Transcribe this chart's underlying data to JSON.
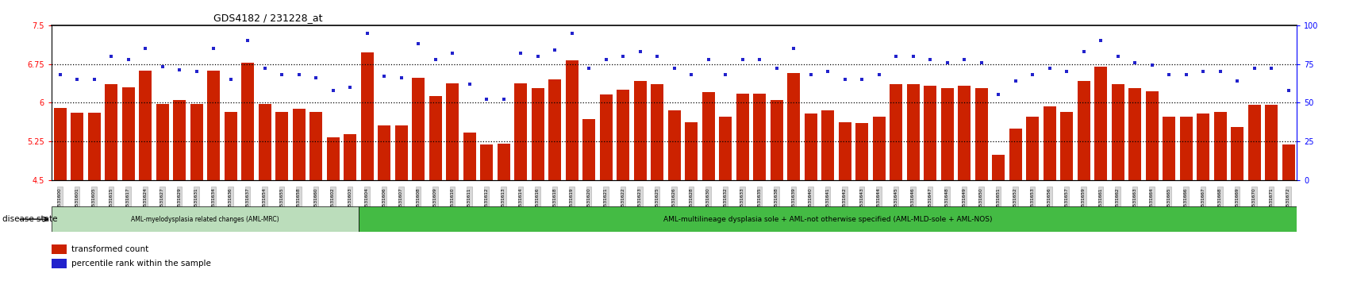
{
  "title": "GDS4182 / 231228_at",
  "ylim_left": [
    4.5,
    7.5
  ],
  "ylim_right": [
    0,
    100
  ],
  "yticks_left": [
    4.5,
    5.25,
    6.0,
    6.75,
    7.5
  ],
  "ytick_labels_left": [
    "4.5",
    "5.25",
    "6",
    "6.75",
    "7.5"
  ],
  "yticks_right": [
    0,
    25,
    50,
    75,
    100
  ],
  "ytick_labels_right": [
    "0",
    "25",
    "50",
    "75",
    "100"
  ],
  "dotted_lines": [
    5.25,
    6.0,
    6.75
  ],
  "bar_color": "#cc2200",
  "dot_color": "#2222cc",
  "bg_color": "#ffffff",
  "disease_band1_color": "#bbddbb",
  "disease_band2_color": "#44bb44",
  "disease_band1_label": "AML-myelodysplasia related changes (AML-MRC)",
  "disease_band2_label": "AML-multilineage dysplasia sole + AML-not otherwise specified (AML-MLD-sole + AML-NOS)",
  "disease_state_label": "disease state",
  "legend_bar_label": "transformed count",
  "legend_dot_label": "percentile rank within the sample",
  "samples": [
    "GSM531600",
    "GSM531601",
    "GSM531605",
    "GSM531615",
    "GSM531617",
    "GSM531624",
    "GSM531627",
    "GSM531629",
    "GSM531631",
    "GSM531634",
    "GSM531636",
    "GSM531637",
    "GSM531654",
    "GSM531655",
    "GSM531658",
    "GSM531660",
    "GSM531602",
    "GSM531603",
    "GSM531604",
    "GSM531606",
    "GSM531607",
    "GSM531608",
    "GSM531609",
    "GSM531610",
    "GSM531611",
    "GSM531612",
    "GSM531613",
    "GSM531614",
    "GSM531616",
    "GSM531618",
    "GSM531619",
    "GSM531620",
    "GSM531621",
    "GSM531622",
    "GSM531623",
    "GSM531625",
    "GSM531626",
    "GSM531628",
    "GSM531630",
    "GSM531632",
    "GSM531633",
    "GSM531635",
    "GSM531638",
    "GSM531639",
    "GSM531640",
    "GSM531641",
    "GSM531642",
    "GSM531643",
    "GSM531644",
    "GSM531645",
    "GSM531646",
    "GSM531647",
    "GSM531648",
    "GSM531649",
    "GSM531650",
    "GSM531651",
    "GSM531652",
    "GSM531653",
    "GSM531656",
    "GSM531657",
    "GSM531659",
    "GSM531661",
    "GSM531662",
    "GSM531663",
    "GSM531664",
    "GSM531665",
    "GSM531666",
    "GSM531667",
    "GSM531668",
    "GSM531669",
    "GSM531670",
    "GSM531671",
    "GSM531672"
  ],
  "bar_values": [
    5.9,
    5.8,
    5.8,
    6.35,
    6.3,
    6.62,
    5.98,
    6.05,
    5.97,
    6.62,
    5.82,
    6.78,
    5.98,
    5.82,
    5.88,
    5.82,
    5.32,
    5.38,
    6.98,
    5.55,
    5.55,
    6.48,
    6.12,
    6.38,
    5.42,
    5.18,
    5.2,
    6.38,
    6.28,
    6.45,
    6.82,
    5.68,
    6.15,
    6.25,
    6.42,
    6.35,
    5.85,
    5.62,
    6.2,
    5.72,
    6.18,
    6.18,
    6.05,
    6.58,
    5.78,
    5.85,
    5.62,
    5.6,
    5.72,
    6.35,
    6.35,
    6.32,
    6.28,
    6.32,
    6.28,
    4.98,
    5.5,
    5.72,
    5.92,
    5.82,
    6.42,
    6.7,
    6.35,
    6.28,
    6.22,
    5.72,
    5.72,
    5.78,
    5.82,
    5.52,
    5.95,
    5.95,
    5.18
  ],
  "dot_values": [
    68,
    65,
    65,
    80,
    78,
    85,
    73,
    71,
    70,
    85,
    65,
    90,
    72,
    68,
    68,
    66,
    58,
    60,
    95,
    67,
    66,
    88,
    78,
    82,
    62,
    52,
    52,
    82,
    80,
    84,
    95,
    72,
    78,
    80,
    83,
    80,
    72,
    68,
    78,
    68,
    78,
    78,
    72,
    85,
    68,
    70,
    65,
    65,
    68,
    80,
    80,
    78,
    76,
    78,
    76,
    55,
    64,
    68,
    72,
    70,
    83,
    90,
    80,
    76,
    74,
    68,
    68,
    70,
    70,
    64,
    72,
    72,
    58
  ],
  "group1_count": 18,
  "group2_count": 55
}
